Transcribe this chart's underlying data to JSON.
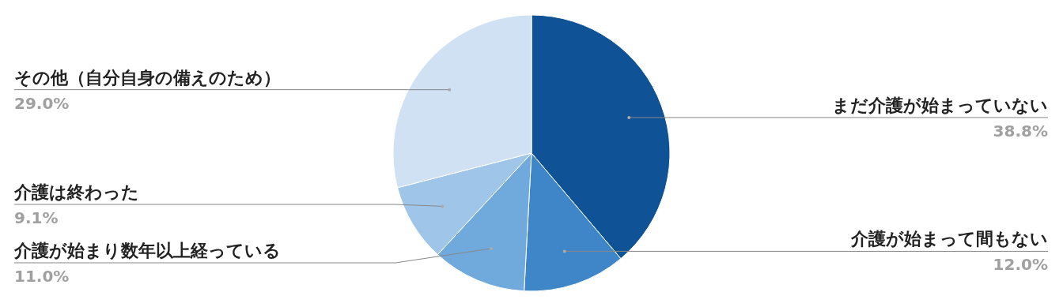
{
  "chart_data": {
    "type": "pie",
    "categories": [
      "まだ介護が始まっていない",
      "介護が始まって間もない",
      "介護が始まり数年以上経っている",
      "介護は終わった",
      "その他（自分自身の備えのため）"
    ],
    "values": [
      38.8,
      12.0,
      11.0,
      9.1,
      29.0
    ],
    "value_labels": [
      "38.8%",
      "12.0%",
      "11.0%",
      "9.1%",
      "29.0%"
    ],
    "colors": [
      "#0f5296",
      "#3f86c8",
      "#70a9dc",
      "#9fc5e8",
      "#cfe1f3"
    ]
  }
}
